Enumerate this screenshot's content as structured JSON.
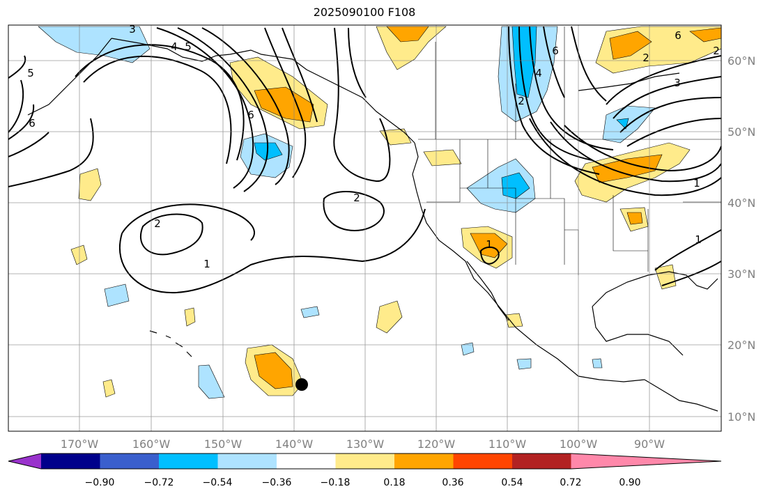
{
  "title": "2025090100 F108",
  "longitude_labels": [
    "170°W",
    "160°W",
    "150°W",
    "140°W",
    "130°W",
    "120°W",
    "110°W",
    "100°W",
    "90°W"
  ],
  "latitude_labels": [
    "60°N",
    "50°N",
    "40°N",
    "30°N",
    "20°N",
    "10°N"
  ],
  "colorbar": {
    "colors": [
      "#9932cc",
      "#00008b",
      "#3a5fcd",
      "#00bfff",
      "#aee3ff",
      "#ffffff",
      "#ffeb8b",
      "#ffa500",
      "#ff4500",
      "#b22222",
      "#ff88aa"
    ],
    "tick_labels": [
      "−0.90",
      "−0.72",
      "−0.54",
      "−0.36",
      "−0.18",
      "0.18",
      "0.36",
      "0.54",
      "0.72",
      "0.90"
    ]
  },
  "contour_labels": [
    "2",
    "1",
    "2",
    "6",
    "5",
    "6",
    "3",
    "4",
    "5",
    "2",
    "4",
    "6",
    "2",
    "3",
    "2",
    "6",
    "1",
    "1",
    "1"
  ],
  "marker": {
    "name": "storm-center",
    "color": "#000000"
  }
}
